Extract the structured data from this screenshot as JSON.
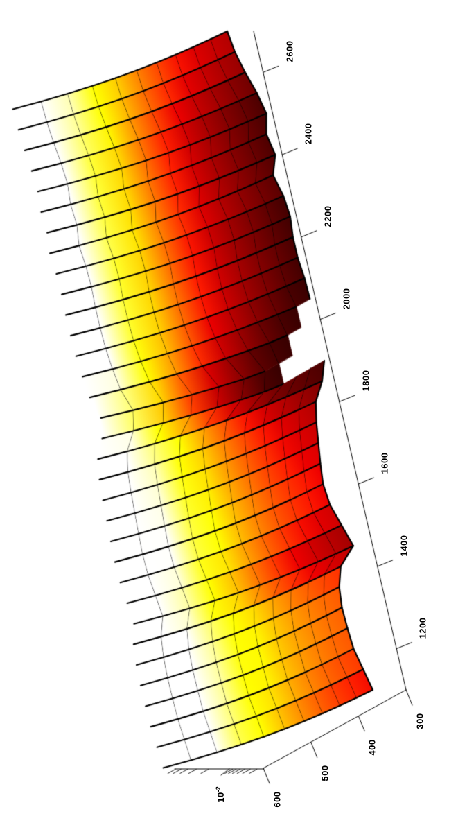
{
  "figure": {
    "background": "#ffffff"
  },
  "chart_data": {
    "type": "surface",
    "title": "",
    "view": "3d surface (hot colormap, black mesh), figure rotated 90deg to portrait",
    "x_axis": {
      "label": "",
      "tick_labels": [
        "2600",
        "2400",
        "2200",
        "2000",
        "1800",
        "1600",
        "1400",
        "1200"
      ],
      "tick_values": [
        2600,
        2400,
        2200,
        2000,
        1800,
        1600,
        1400,
        1200
      ],
      "range": [
        1100,
        2700
      ],
      "sample_start": 1100,
      "sample_step": 50,
      "sample_count": 33
    },
    "y_axis": {
      "label": "",
      "tick_labels": [
        "300",
        "400",
        "500",
        "600"
      ],
      "tick_values": [
        300,
        400,
        500,
        600
      ],
      "range": [
        300,
        600
      ],
      "row_values": [
        300,
        330,
        360,
        390,
        420,
        450,
        480,
        510,
        540,
        570,
        600
      ]
    },
    "z_axis": {
      "scale": "log",
      "tick_base": "10",
      "tick_exponent": "-2",
      "tick_value": 0.01,
      "floor_log10": -2.5,
      "minor_decades": [
        -3,
        -2
      ]
    },
    "surface": {
      "comment": "log10(z) of each mesh row = -2.30 + row_offset + row_dip_scale * (base_spectrum_log10 + 2.30)",
      "base_spectrum_log10": [
        -2.02,
        -1.95,
        -1.88,
        -1.86,
        -1.85,
        -1.88,
        -1.97,
        -2.22,
        -2.12,
        -2.02,
        -1.99,
        -2.02,
        -2.06,
        -2.1,
        -2.16,
        -2.32,
        -2.75,
        -2.92,
        -2.62,
        -2.49,
        -2.41,
        -2.38,
        -2.38,
        -2.41,
        -2.38,
        -2.3,
        -2.4,
        -2.34,
        -2.41,
        -2.34,
        -2.24,
        -2.16,
        -2.12
      ],
      "row_offset_log10": [
        0,
        0.055,
        0.12,
        0.195,
        0.285,
        0.39,
        0.515,
        0.665,
        0.84,
        1.04,
        1.27
      ],
      "row_dip_scale": [
        1.0,
        0.93,
        0.86,
        0.79,
        0.72,
        0.65,
        0.58,
        0.51,
        0.44,
        0.37,
        0.3
      ],
      "clip_floor_log10": -2.42,
      "colormap": "hot",
      "color_range_log10": [
        -2.55,
        -1.25
      ]
    },
    "colors": {
      "background": "#ffffff",
      "mesh_line": "#000000",
      "axis": "#000000",
      "colormap_low": "#000000",
      "colormap_mid": "#ff8000",
      "colormap_high": "#ffffff"
    },
    "legend": null,
    "grid": false
  }
}
